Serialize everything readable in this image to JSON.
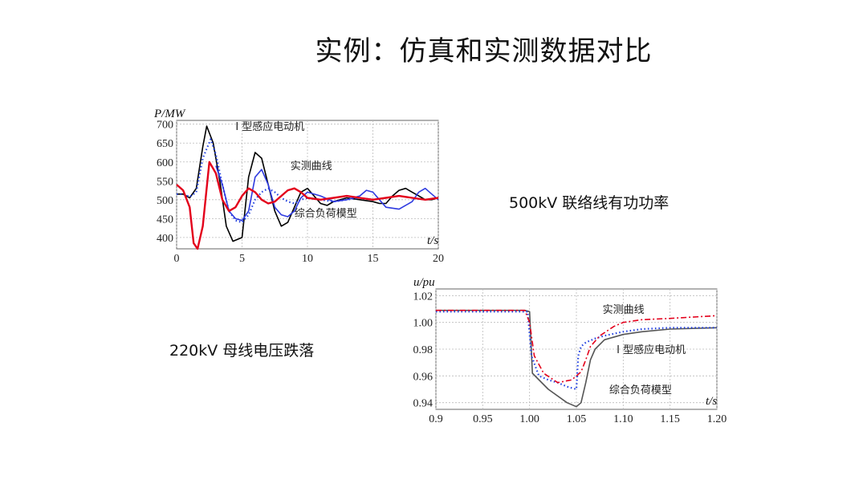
{
  "slide": {
    "title": "实例：仿真和实测数据对比",
    "caption_top": "500kV 联络线有功功率",
    "caption_bottom": "220kV 母线电压跌落"
  },
  "chart_data": [
    {
      "type": "line",
      "ylabel": "P/MW",
      "xlabel": "t/s",
      "xlim": [
        0,
        20
      ],
      "ylim": [
        370,
        710
      ],
      "xticks": [
        0,
        5,
        10,
        15,
        20
      ],
      "yticks": [
        400,
        450,
        500,
        550,
        600,
        650,
        700
      ],
      "grid": true,
      "annotations": [
        {
          "text": "I 型感应电动机",
          "x": 4.5,
          "y": 685
        },
        {
          "text": "实测曲线",
          "x": 8.7,
          "y": 580
        },
        {
          "text": "综合负荷模型",
          "x": 9.0,
          "y": 455
        }
      ],
      "series": [
        {
          "color": "#000000",
          "style": "solid",
          "x": [
            0,
            0.5,
            1.0,
            1.5,
            2.0,
            2.3,
            2.8,
            3.3,
            3.8,
            4.3,
            5.0,
            5.5,
            6.0,
            6.5,
            7.0,
            7.5,
            8.0,
            8.5,
            9.0,
            9.5,
            10.0,
            10.5,
            11.0,
            11.5,
            12.0,
            13.0,
            14.0,
            15.0,
            15.5,
            16.0,
            16.5,
            17.0,
            17.5,
            18.0,
            18.5,
            19.0,
            19.5,
            20.0
          ],
          "y": [
            515,
            515,
            505,
            530,
            640,
            695,
            650,
            550,
            430,
            390,
            400,
            560,
            625,
            610,
            540,
            470,
            430,
            440,
            480,
            520,
            530,
            510,
            490,
            485,
            495,
            505,
            500,
            495,
            490,
            490,
            510,
            525,
            530,
            520,
            510,
            500,
            500,
            505
          ]
        },
        {
          "color": "#1f3ee0",
          "style": "dotted",
          "x": [
            0,
            0.5,
            1.0,
            1.5,
            2.0,
            2.6,
            3.0,
            3.5,
            4.0,
            4.5,
            5.0,
            5.5,
            6.0,
            6.5,
            7.0,
            7.5,
            8.0,
            8.5,
            9.0,
            9.5,
            10.0,
            11.0,
            12.0,
            13.0,
            14.0,
            15.0
          ],
          "y": [
            515,
            515,
            508,
            520,
            610,
            660,
            620,
            540,
            470,
            445,
            440,
            460,
            500,
            520,
            530,
            520,
            505,
            495,
            490,
            500,
            505,
            500,
            495,
            500,
            505,
            500
          ]
        },
        {
          "color": "#2e3ae0",
          "style": "solid",
          "x": [
            3.0,
            3.5,
            4.0,
            4.5,
            5.0,
            5.5,
            6.0,
            6.5,
            7.0,
            7.5,
            8.0,
            8.5,
            9.0,
            9.5,
            10.0,
            11.0,
            12.0,
            13.0,
            14.0,
            14.5,
            15.0,
            15.5,
            16.0,
            17.0,
            18.0,
            18.5,
            19.0,
            19.5,
            20.0
          ],
          "y": [
            590,
            540,
            470,
            450,
            445,
            470,
            560,
            580,
            540,
            480,
            460,
            455,
            470,
            505,
            520,
            510,
            495,
            500,
            510,
            525,
            520,
            500,
            480,
            475,
            495,
            520,
            530,
            515,
            500
          ]
        },
        {
          "color": "#e3001b",
          "style": "solid",
          "x": [
            0,
            0.5,
            1.0,
            1.3,
            1.6,
            2.0,
            2.5,
            3.0,
            3.5,
            4.0,
            4.5,
            5.0,
            5.5,
            6.0,
            6.5,
            7.0,
            7.5,
            8.0,
            8.5,
            9.0,
            9.5,
            10.0,
            11.0,
            12.0,
            13.0,
            14.0,
            15.0,
            16.0,
            17.0,
            18.0,
            19.0,
            20.0
          ],
          "y": [
            540,
            525,
            480,
            385,
            370,
            430,
            600,
            570,
            500,
            470,
            480,
            510,
            530,
            520,
            500,
            490,
            495,
            510,
            525,
            530,
            520,
            505,
            500,
            505,
            510,
            505,
            500,
            505,
            510,
            505,
            500,
            505
          ]
        }
      ]
    },
    {
      "type": "line",
      "ylabel": "u/pu",
      "xlabel": "t/s",
      "xlim": [
        0.9,
        1.2
      ],
      "ylim": [
        0.935,
        1.025
      ],
      "xticks": [
        0.9,
        0.95,
        1.0,
        1.05,
        1.1,
        1.15,
        1.2
      ],
      "xtick_labels": [
        "0.9",
        "0.95",
        "1.00",
        "1.05",
        "1.10",
        "1.15",
        "1.20"
      ],
      "yticks": [
        0.94,
        0.96,
        0.98,
        1.0,
        1.02
      ],
      "ytick_labels": [
        "0.94",
        "0.96",
        "0.98",
        "1.00",
        "1.02"
      ],
      "grid": true,
      "annotations": [
        {
          "text": "实测曲线",
          "x": 1.078,
          "y": 1.007
        },
        {
          "text": "I 型感应电动机",
          "x": 1.093,
          "y": 0.977
        },
        {
          "text": "综合负荷模型",
          "x": 1.085,
          "y": 0.947
        }
      ],
      "series": [
        {
          "color": "#555555",
          "style": "solid",
          "x": [
            0.9,
            0.995,
            1.0,
            1.003,
            1.02,
            1.04,
            1.05,
            1.055,
            1.06,
            1.065,
            1.07,
            1.08,
            1.1,
            1.12,
            1.15,
            1.2
          ],
          "y": [
            1.009,
            1.009,
            1.008,
            0.962,
            0.95,
            0.94,
            0.937,
            0.94,
            0.955,
            0.972,
            0.98,
            0.987,
            0.991,
            0.993,
            0.995,
            0.996
          ]
        },
        {
          "color": "#1f3ee0",
          "style": "dotted",
          "x": [
            0.9,
            0.998,
            1.002,
            1.01,
            1.02,
            1.03,
            1.04,
            1.05,
            1.052,
            1.055,
            1.06,
            1.07,
            1.08,
            1.1,
            1.12,
            1.15,
            1.2
          ],
          "y": [
            1.008,
            1.008,
            0.975,
            0.96,
            0.957,
            0.955,
            0.952,
            0.95,
            0.975,
            0.982,
            0.985,
            0.988,
            0.99,
            0.993,
            0.995,
            0.996,
            0.996
          ]
        },
        {
          "color": "#e3001b",
          "style": "dashdot",
          "x": [
            0.9,
            0.995,
            1.0,
            1.005,
            1.015,
            1.03,
            1.045,
            1.05,
            1.055,
            1.06,
            1.065,
            1.075,
            1.09,
            1.1,
            1.12,
            1.15,
            1.2
          ],
          "y": [
            1.009,
            1.009,
            1.0,
            0.975,
            0.962,
            0.955,
            0.957,
            0.96,
            0.963,
            0.972,
            0.982,
            0.99,
            0.997,
            1.0,
            1.002,
            1.003,
            1.005
          ]
        }
      ]
    }
  ]
}
